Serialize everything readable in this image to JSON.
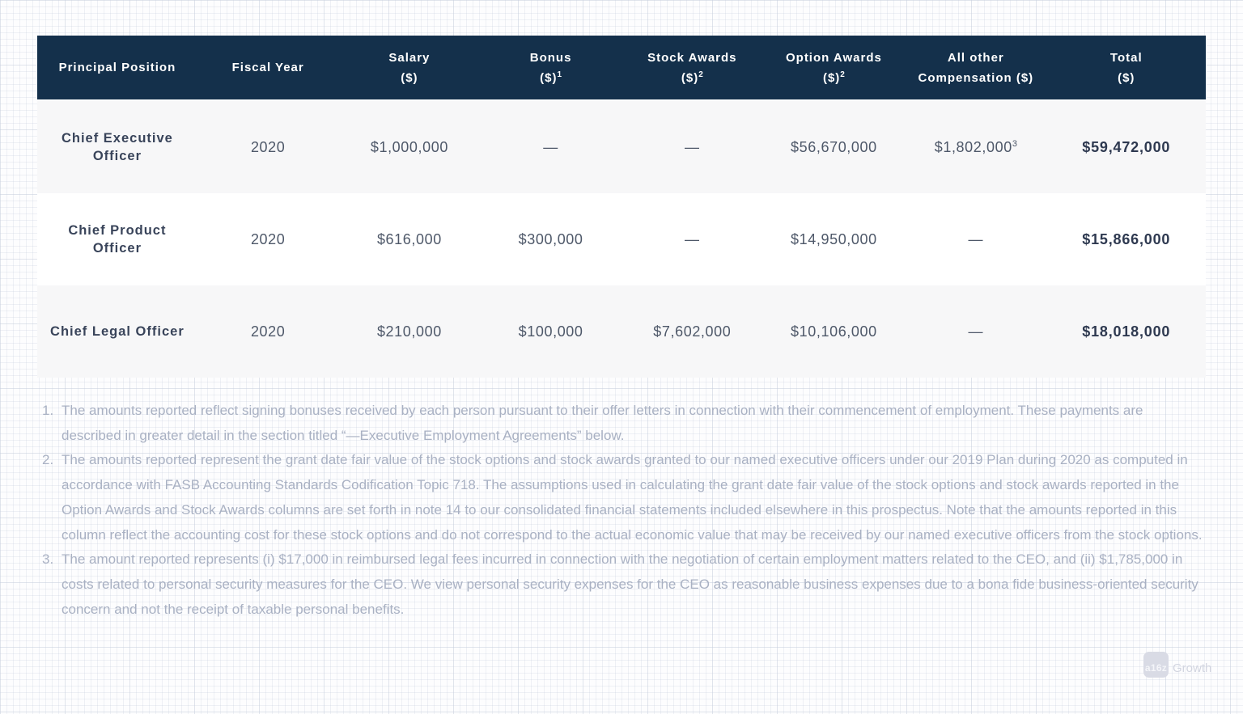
{
  "table": {
    "columns": [
      {
        "label": "Principal Position",
        "sub": "",
        "sup": ""
      },
      {
        "label": "Fiscal Year",
        "sub": "",
        "sup": ""
      },
      {
        "label": "Salary",
        "sub": "($)",
        "sup": ""
      },
      {
        "label": "Bonus",
        "sub": "($)",
        "sup": "1"
      },
      {
        "label": "Stock Awards",
        "sub": "($)",
        "sup": "2"
      },
      {
        "label": "Option Awards",
        "sub": "($)",
        "sup": "2"
      },
      {
        "label": "All other",
        "sub": "Compensation ($)",
        "sup": ""
      },
      {
        "label": "Total",
        "sub": "($)",
        "sup": ""
      }
    ],
    "rows": [
      {
        "position": "Chief Executive Officer",
        "fiscal_year": "2020",
        "salary": "$1,000,000",
        "bonus": "—",
        "stock_awards": "—",
        "option_awards": "$56,670,000",
        "all_other_compensation": "$1,802,000",
        "all_other_sup": "3",
        "total": "$59,472,000"
      },
      {
        "position": "Chief Product Officer",
        "fiscal_year": "2020",
        "salary": "$616,000",
        "bonus": "$300,000",
        "stock_awards": "—",
        "option_awards": "$14,950,000",
        "all_other_compensation": "—",
        "all_other_sup": "",
        "total": "$15,866,000"
      },
      {
        "position": "Chief Legal Officer",
        "fiscal_year": "2020",
        "salary": "$210,000",
        "bonus": "$100,000",
        "stock_awards": "$7,602,000",
        "option_awards": "$10,106,000",
        "all_other_compensation": "—",
        "all_other_sup": "",
        "total": "$18,018,000"
      }
    ]
  },
  "footnotes": [
    {
      "num": "1.",
      "text": "The amounts reported reflect signing bonuses received by each person pursuant to their offer letters in connection with their commencement of employment. These payments are described in greater detail in the section titled “—Executive Employment Agreements” below."
    },
    {
      "num": "2.",
      "text": "The amounts reported represent the grant date fair value of the stock options and stock awards granted to our named executive officers under our 2019 Plan during 2020 as computed in accordance with FASB Accounting Standards Codification Topic 718. The assumptions used in calculating the grant date fair value of the stock options and stock awards reported in the Option Awards and Stock Awards columns are set forth in note 14 to our consolidated financial statements included elsewhere in this prospectus. Note that the amounts reported in this column reflect the accounting cost for these stock options and do not correspond to the actual economic value that may be received by our named executive officers from the stock options."
    },
    {
      "num": "3.",
      "text": "The amount reported represents (i) $17,000 in reimbursed legal fees incurred in connection with the negotiation of certain employment matters related to the CEO, and (ii) $1,785,000 in costs related to personal security measures for the CEO. We view personal security expenses for the CEO as reasonable business expenses due to a bona fide business-oriented security concern and not the receipt of taxable personal benefits."
    }
  ],
  "watermark": {
    "badge": "a16z",
    "label": "Growth"
  },
  "colors": {
    "header_bg": "#14304b",
    "header_text": "#ffffff",
    "row_alt_bg": "#f7f7f8",
    "cell_text": "#4e5869",
    "position_text": "#39445a",
    "total_text": "#2e3950",
    "footnote_text": "#a9b1c3"
  }
}
